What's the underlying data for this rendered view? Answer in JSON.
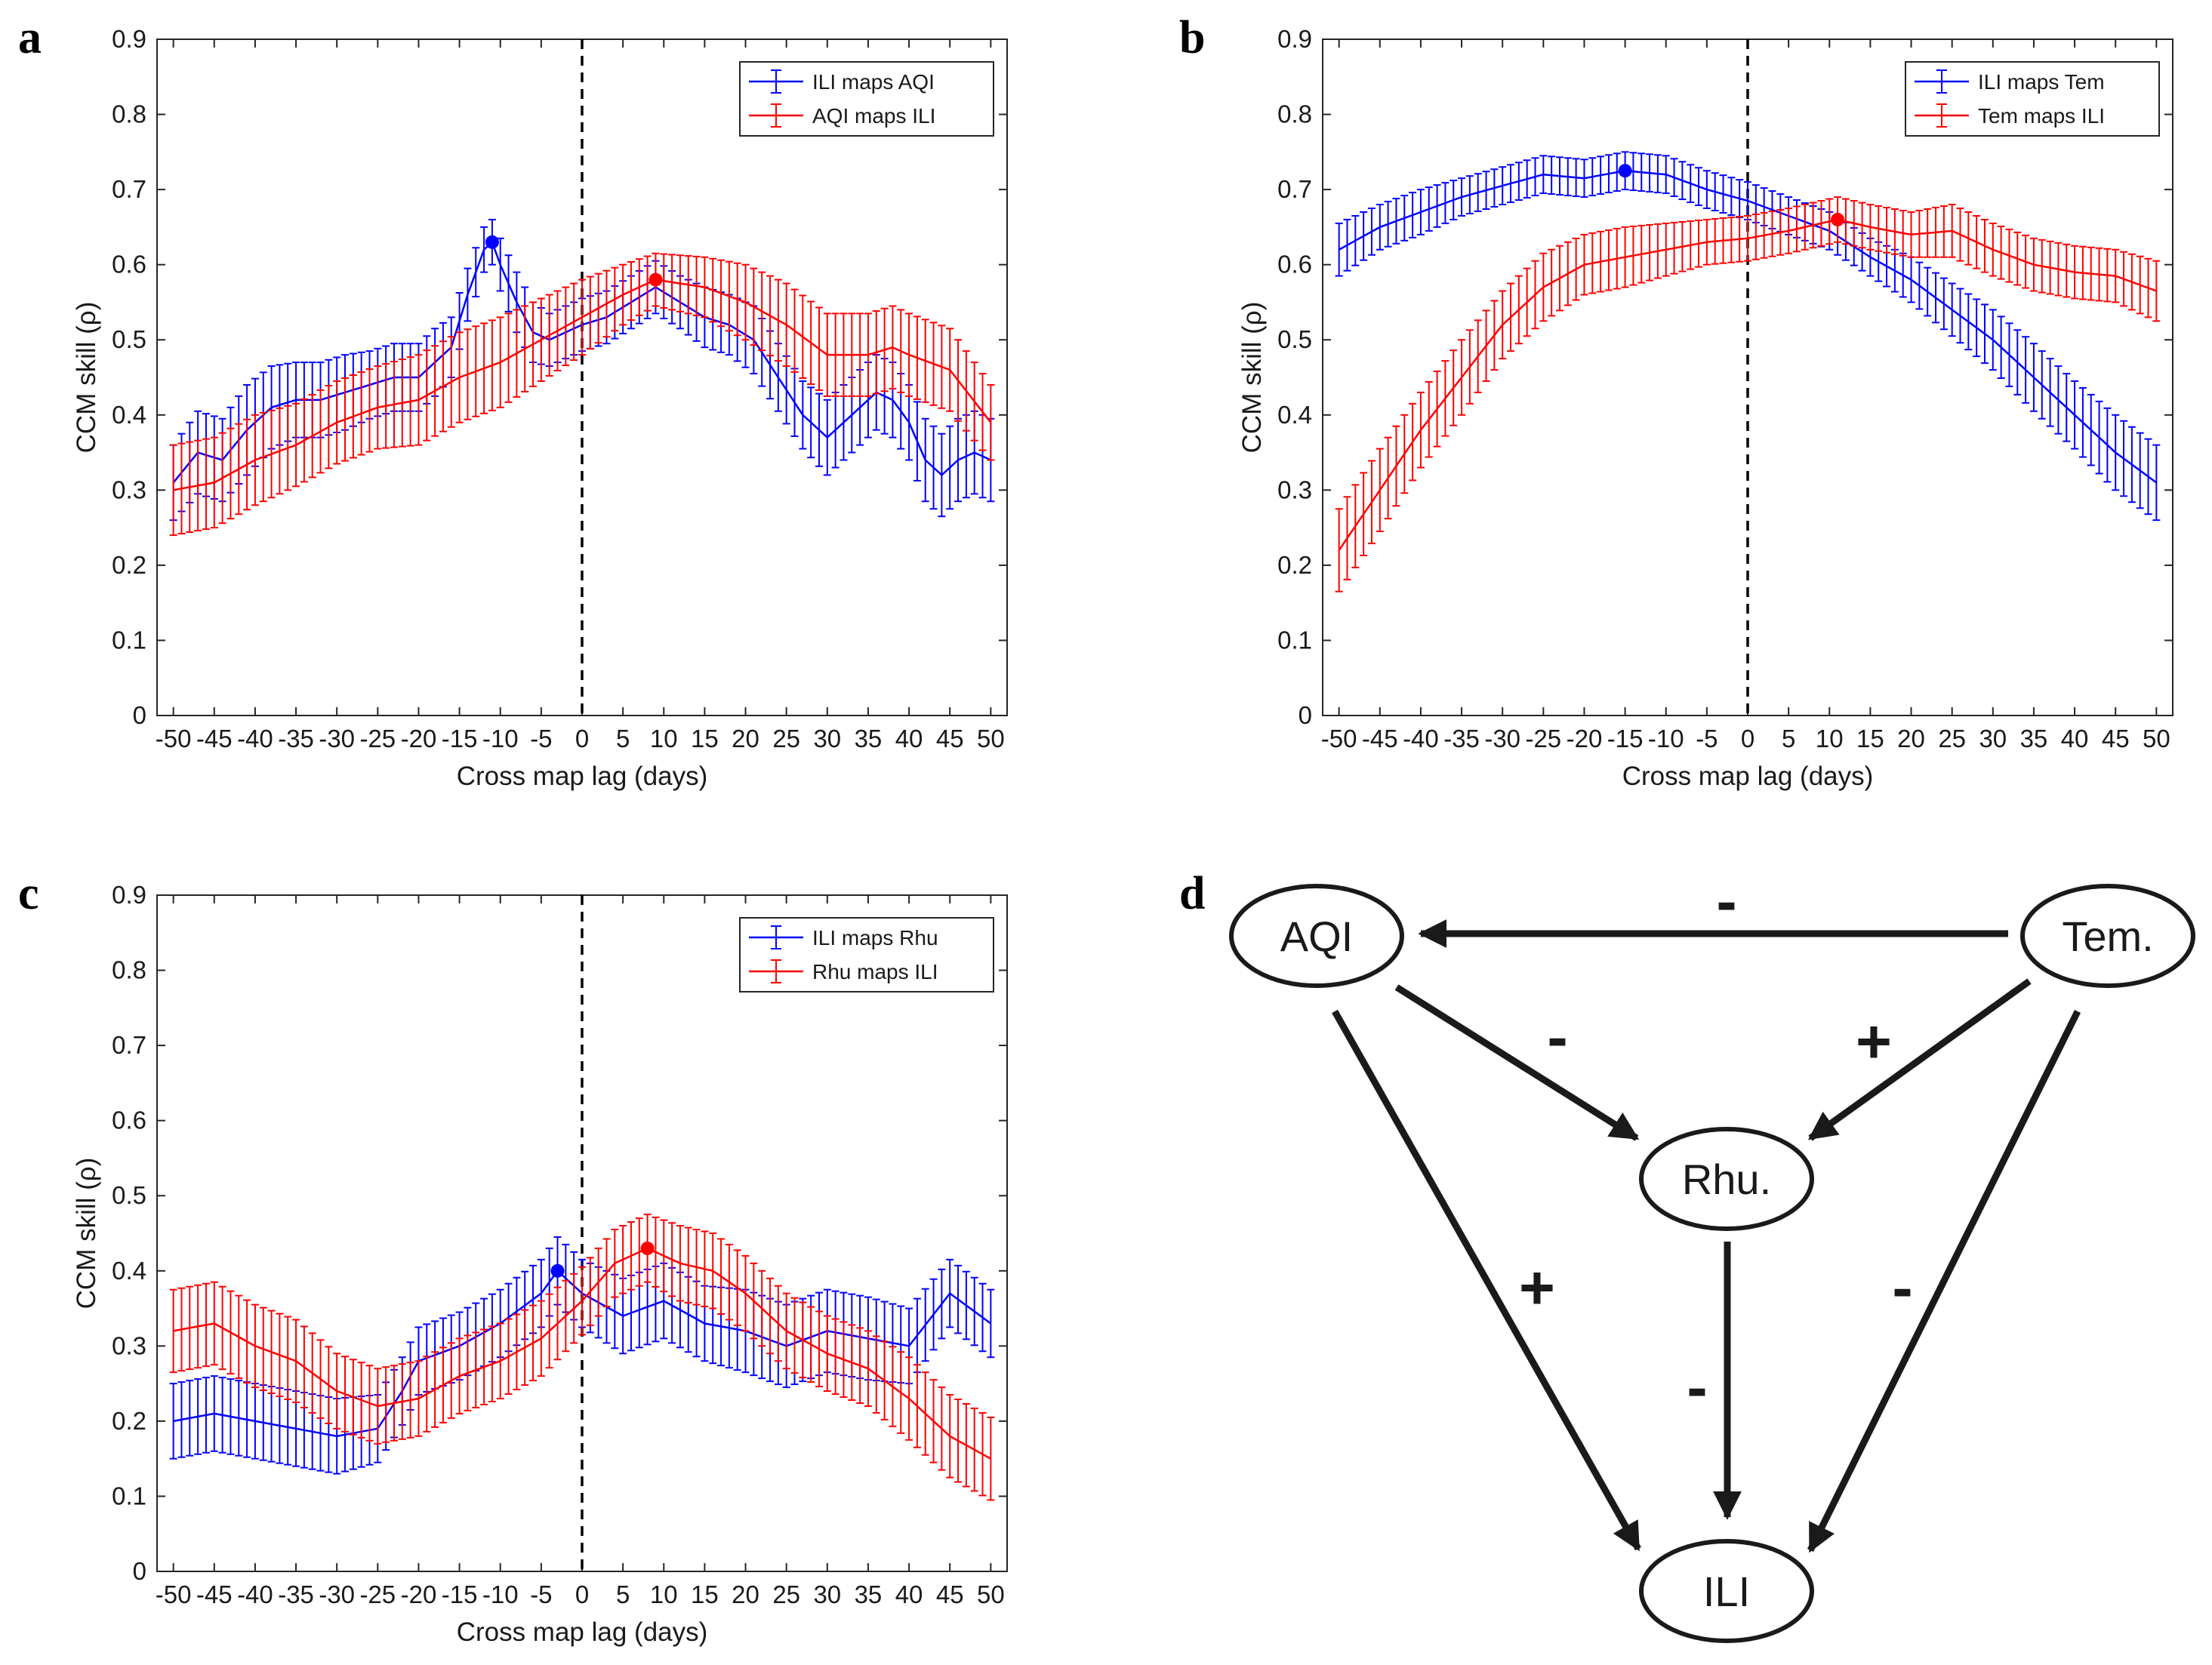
{
  "figure": {
    "panels": [
      "a",
      "b",
      "c",
      "d"
    ]
  },
  "colors": {
    "blue": "#0000ff",
    "red": "#ff0000",
    "axis": "#262626",
    "arrow": "#1a1a1a"
  },
  "chart_data": [
    {
      "id": "a",
      "type": "line",
      "error_bars": true,
      "xlabel": "Cross map lag (days)",
      "ylabel": "CCM skill (ρ)",
      "xlim": [
        -52,
        52
      ],
      "ylim": [
        0,
        0.9
      ],
      "xticks": [
        -50,
        -45,
        -40,
        -35,
        -30,
        -25,
        -20,
        -15,
        -10,
        -5,
        0,
        5,
        10,
        15,
        20,
        25,
        30,
        35,
        40,
        45,
        50
      ],
      "yticks": [
        0,
        0.1,
        0.2,
        0.3,
        0.4,
        0.5,
        0.6,
        0.7,
        0.8,
        0.9
      ],
      "zero_line_x": 0,
      "legend": "top-right",
      "series": [
        {
          "name": "ILI maps AQI",
          "color": "#0000ff",
          "knots_x": [
            -50,
            -47,
            -44,
            -41,
            -38,
            -35,
            -32,
            -29,
            -26,
            -23,
            -20,
            -18,
            -16,
            -14,
            -12,
            -11,
            -10,
            -8,
            -6,
            -4,
            -2,
            0,
            3,
            6,
            9,
            12,
            15,
            18,
            21,
            24,
            27,
            30,
            32,
            34,
            36,
            38,
            40,
            42,
            44,
            46,
            48,
            50
          ],
          "knots_y": [
            0.31,
            0.35,
            0.34,
            0.38,
            0.41,
            0.42,
            0.42,
            0.43,
            0.44,
            0.45,
            0.45,
            0.47,
            0.49,
            0.56,
            0.62,
            0.63,
            0.6,
            0.55,
            0.51,
            0.5,
            0.51,
            0.52,
            0.53,
            0.55,
            0.57,
            0.55,
            0.53,
            0.52,
            0.5,
            0.45,
            0.4,
            0.37,
            0.39,
            0.41,
            0.43,
            0.42,
            0.39,
            0.34,
            0.32,
            0.34,
            0.35,
            0.34
          ],
          "knots_err": [
            0.05,
            0.055,
            0.055,
            0.06,
            0.055,
            0.05,
            0.05,
            0.05,
            0.045,
            0.045,
            0.045,
            0.045,
            0.04,
            0.035,
            0.03,
            0.03,
            0.035,
            0.04,
            0.04,
            0.035,
            0.035,
            0.035,
            0.035,
            0.035,
            0.035,
            0.035,
            0.04,
            0.04,
            0.045,
            0.045,
            0.045,
            0.05,
            0.05,
            0.05,
            0.05,
            0.05,
            0.05,
            0.055,
            0.055,
            0.055,
            0.055,
            0.055
          ],
          "peak": {
            "x": -11,
            "y": 0.63
          }
        },
        {
          "name": "AQI maps ILI",
          "color": "#ff0000",
          "knots_x": [
            -50,
            -45,
            -40,
            -35,
            -30,
            -25,
            -20,
            -15,
            -10,
            -5,
            0,
            5,
            9,
            15,
            20,
            25,
            30,
            35,
            38,
            40,
            45,
            50
          ],
          "knots_y": [
            0.3,
            0.31,
            0.34,
            0.36,
            0.39,
            0.41,
            0.42,
            0.45,
            0.47,
            0.5,
            0.53,
            0.56,
            0.58,
            0.57,
            0.55,
            0.52,
            0.48,
            0.48,
            0.49,
            0.48,
            0.46,
            0.39
          ],
          "knots_err": [
            0.06,
            0.06,
            0.06,
            0.055,
            0.055,
            0.055,
            0.06,
            0.06,
            0.06,
            0.055,
            0.05,
            0.04,
            0.035,
            0.04,
            0.05,
            0.055,
            0.055,
            0.055,
            0.055,
            0.055,
            0.055,
            0.05
          ],
          "peak": {
            "x": 9,
            "y": 0.58
          }
        }
      ]
    },
    {
      "id": "b",
      "type": "line",
      "error_bars": true,
      "xlabel": "Cross map lag (days)",
      "ylabel": "CCM skill (ρ)",
      "xlim": [
        -52,
        52
      ],
      "ylim": [
        0,
        0.9
      ],
      "xticks": [
        -50,
        -45,
        -40,
        -35,
        -30,
        -25,
        -20,
        -15,
        -10,
        -5,
        0,
        5,
        10,
        15,
        20,
        25,
        30,
        35,
        40,
        45,
        50
      ],
      "yticks": [
        0,
        0.1,
        0.2,
        0.3,
        0.4,
        0.5,
        0.6,
        0.7,
        0.8,
        0.9
      ],
      "zero_line_x": 0,
      "legend": "top-right",
      "series": [
        {
          "name": "ILI maps Tem",
          "color": "#0000ff",
          "knots_x": [
            -50,
            -45,
            -40,
            -35,
            -30,
            -25,
            -20,
            -15,
            -10,
            -5,
            0,
            5,
            10,
            15,
            20,
            25,
            30,
            35,
            40,
            45,
            50
          ],
          "knots_y": [
            0.62,
            0.65,
            0.67,
            0.69,
            0.705,
            0.72,
            0.715,
            0.725,
            0.72,
            0.7,
            0.685,
            0.665,
            0.645,
            0.61,
            0.58,
            0.54,
            0.5,
            0.45,
            0.4,
            0.35,
            0.31
          ],
          "knots_err": [
            0.035,
            0.03,
            0.03,
            0.025,
            0.025,
            0.025,
            0.025,
            0.025,
            0.025,
            0.025,
            0.025,
            0.025,
            0.025,
            0.025,
            0.03,
            0.035,
            0.04,
            0.045,
            0.045,
            0.05,
            0.05
          ],
          "peak": {
            "x": -15,
            "y": 0.725
          }
        },
        {
          "name": "Tem maps ILI",
          "color": "#ff0000",
          "knots_x": [
            -50,
            -45,
            -40,
            -35,
            -30,
            -25,
            -20,
            -15,
            -10,
            -5,
            0,
            5,
            11,
            15,
            20,
            25,
            30,
            35,
            40,
            45,
            50
          ],
          "knots_y": [
            0.22,
            0.3,
            0.38,
            0.45,
            0.52,
            0.57,
            0.6,
            0.61,
            0.62,
            0.63,
            0.635,
            0.645,
            0.66,
            0.65,
            0.64,
            0.645,
            0.62,
            0.6,
            0.59,
            0.585,
            0.565
          ],
          "knots_err": [
            0.055,
            0.055,
            0.05,
            0.05,
            0.045,
            0.045,
            0.04,
            0.04,
            0.035,
            0.03,
            0.03,
            0.03,
            0.03,
            0.03,
            0.03,
            0.035,
            0.035,
            0.035,
            0.035,
            0.035,
            0.04
          ],
          "peak": {
            "x": 11,
            "y": 0.66
          }
        }
      ]
    },
    {
      "id": "c",
      "type": "line",
      "error_bars": true,
      "xlabel": "Cross map lag (days)",
      "ylabel": "CCM skill (ρ)",
      "xlim": [
        -52,
        52
      ],
      "ylim": [
        0,
        0.9
      ],
      "xticks": [
        -50,
        -45,
        -40,
        -35,
        -30,
        -25,
        -20,
        -15,
        -10,
        -5,
        0,
        5,
        10,
        15,
        20,
        25,
        30,
        35,
        40,
        45,
        50
      ],
      "yticks": [
        0,
        0.1,
        0.2,
        0.3,
        0.4,
        0.5,
        0.6,
        0.7,
        0.8,
        0.9
      ],
      "zero_line_x": 0,
      "legend": "top-right",
      "series": [
        {
          "name": "ILI maps Rhu",
          "color": "#0000ff",
          "knots_x": [
            -50,
            -45,
            -40,
            -35,
            -30,
            -25,
            -22,
            -20,
            -15,
            -10,
            -5,
            -3,
            0,
            5,
            10,
            15,
            20,
            25,
            30,
            35,
            40,
            45,
            50
          ],
          "knots_y": [
            0.2,
            0.21,
            0.2,
            0.19,
            0.18,
            0.19,
            0.24,
            0.28,
            0.3,
            0.33,
            0.37,
            0.4,
            0.37,
            0.34,
            0.36,
            0.33,
            0.32,
            0.3,
            0.32,
            0.31,
            0.3,
            0.37,
            0.33
          ],
          "knots_err": [
            0.05,
            0.05,
            0.05,
            0.05,
            0.05,
            0.045,
            0.045,
            0.045,
            0.045,
            0.045,
            0.045,
            0.045,
            0.045,
            0.05,
            0.05,
            0.05,
            0.055,
            0.055,
            0.055,
            0.055,
            0.05,
            0.045,
            0.045
          ],
          "peak": {
            "x": -3,
            "y": 0.4
          }
        },
        {
          "name": "Rhu maps ILI",
          "color": "#ff0000",
          "knots_x": [
            -50,
            -45,
            -40,
            -35,
            -30,
            -25,
            -20,
            -15,
            -10,
            -5,
            0,
            4,
            8,
            12,
            16,
            20,
            25,
            30,
            35,
            40,
            45,
            50
          ],
          "knots_y": [
            0.32,
            0.33,
            0.3,
            0.28,
            0.24,
            0.22,
            0.23,
            0.26,
            0.28,
            0.31,
            0.36,
            0.41,
            0.43,
            0.41,
            0.4,
            0.37,
            0.32,
            0.29,
            0.27,
            0.23,
            0.18,
            0.15
          ],
          "knots_err": [
            0.055,
            0.055,
            0.055,
            0.055,
            0.05,
            0.05,
            0.05,
            0.05,
            0.05,
            0.05,
            0.045,
            0.045,
            0.045,
            0.05,
            0.05,
            0.05,
            0.05,
            0.05,
            0.05,
            0.055,
            0.055,
            0.055
          ],
          "peak": {
            "x": 8,
            "y": 0.43
          }
        }
      ]
    }
  ],
  "diagram": {
    "nodes": {
      "aqi": "AQI",
      "tem": "Tem.",
      "rhu": "Rhu.",
      "ili": "ILI"
    },
    "edges": [
      {
        "id": "tem-aqi",
        "from": "Tem.",
        "to": "AQI",
        "sign": "-"
      },
      {
        "id": "aqi-rhu",
        "from": "AQI",
        "to": "Rhu.",
        "sign": "-"
      },
      {
        "id": "tem-rhu",
        "from": "Tem.",
        "to": "Rhu.",
        "sign": "+"
      },
      {
        "id": "aqi-ili",
        "from": "AQI",
        "to": "ILI",
        "sign": "+"
      },
      {
        "id": "tem-ili",
        "from": "Tem.",
        "to": "ILI",
        "sign": "-"
      },
      {
        "id": "rhu-ili",
        "from": "Rhu.",
        "to": "ILI",
        "sign": "-"
      }
    ]
  }
}
